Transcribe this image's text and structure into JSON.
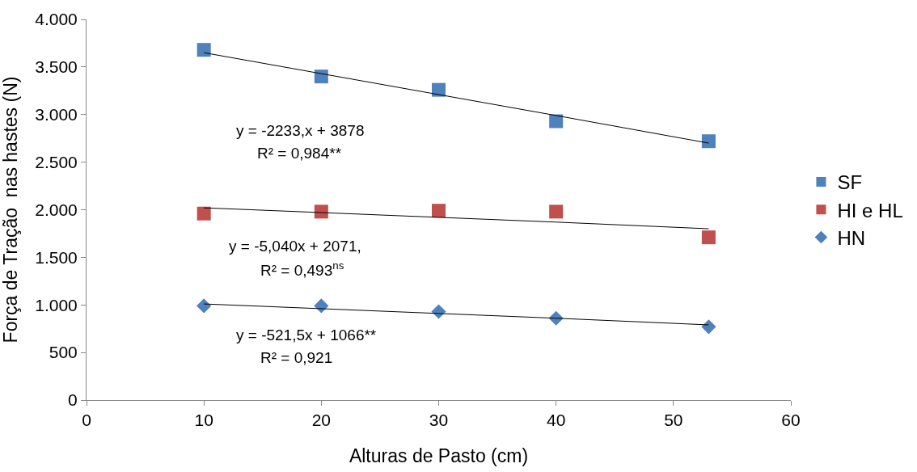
{
  "chart_data": {
    "type": "scatter",
    "xlabel": "Alturas de Pasto (cm)",
    "ylabel": "Força de Tração  nas hastes (N)",
    "x": [
      10,
      20,
      30,
      40,
      53
    ],
    "series": [
      {
        "name": "SF",
        "color": "#4f81bd",
        "marker": "square",
        "values": [
          3680,
          3400,
          3260,
          2930,
          2720
        ]
      },
      {
        "name": "HI e HL",
        "color": "#c0504d",
        "marker": "square",
        "values": [
          1960,
          1980,
          1990,
          1980,
          1710
        ]
      },
      {
        "name": "HN",
        "color": "#4f81bd",
        "marker": "diamond",
        "values": [
          990,
          990,
          930,
          860,
          770
        ]
      },
      {
        "type": "line",
        "color": "#000000",
        "values": [
          3650,
          3430,
          3210,
          2990,
          2700
        ]
      },
      {
        "type": "line",
        "color": "#000000",
        "values": [
          2020,
          1970,
          1920,
          1870,
          1800
        ]
      },
      {
        "type": "line",
        "color": "#000000",
        "values": [
          1010,
          960,
          910,
          860,
          790
        ]
      }
    ],
    "annotations": [
      "y = -2233,x + 3878",
      "R² = 0,984**",
      "y = -5,040x + 2071,",
      "R² = 0,493$^{ns}$",
      "y = -521,5x + 1066**",
      "R² = 0,921"
    ],
    "xlim": [
      0,
      60
    ],
    "xticks": [
      0,
      10,
      20,
      30,
      40,
      50,
      60
    ],
    "ylim": [
      0,
      4000
    ],
    "yticks": [
      0,
      500,
      {
        "value": 1000,
        "label": "1.000"
      },
      {
        "value": 1500,
        "label": "1.500"
      },
      {
        "value": 2000,
        "label": "2.000"
      },
      {
        "value": 2500,
        "label": "2.500"
      },
      {
        "value": 3000,
        "label": "3.000"
      },
      {
        "value": 3500,
        "label": "3.500"
      },
      {
        "value": 4000,
        "label": "4.000"
      }
    ],
    "legend": "right"
  }
}
